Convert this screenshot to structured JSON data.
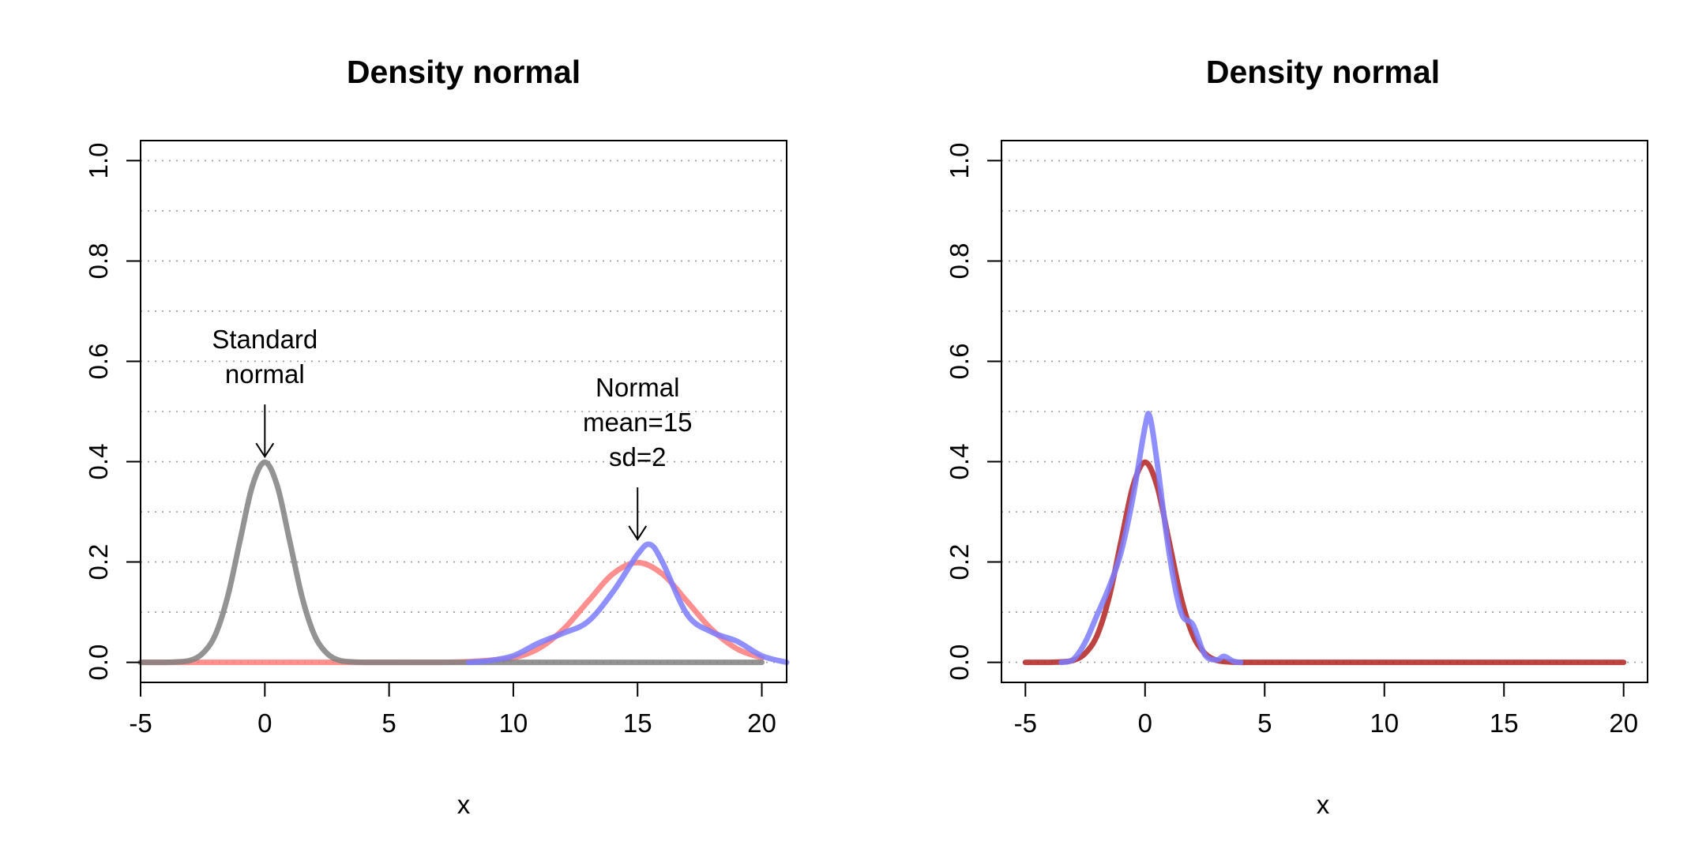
{
  "chart_data": [
    {
      "type": "line",
      "title": "Density normal",
      "xlabel": "x",
      "ylabel": "",
      "xlim": [
        -5,
        21
      ],
      "ylim": [
        -0.04,
        1.04
      ],
      "x_ticks": [
        -5,
        0,
        5,
        10,
        15,
        20
      ],
      "x_tick_labels": [
        "-5",
        "0",
        "5",
        "10",
        "15",
        "20"
      ],
      "y_ticks": [
        0,
        0.2,
        0.4,
        0.6,
        0.8,
        1.0
      ],
      "y_tick_labels": [
        "0.0",
        "0.2",
        "0.4",
        "0.6",
        "0.8",
        "1.0"
      ],
      "grid_y": [
        0,
        0.1,
        0.2,
        0.3,
        0.4,
        0.5,
        0.6,
        0.7,
        0.8,
        0.9,
        1.0
      ],
      "grid": "horizontal dotted",
      "series": [
        {
          "color": "#FF7A7A",
          "x": [
            -5,
            -4,
            -3,
            -2,
            -1,
            0,
            1,
            2,
            3,
            4,
            5,
            6,
            7,
            8,
            9,
            10,
            11,
            12,
            13,
            14,
            15,
            16,
            17,
            18,
            19,
            20
          ],
          "y": [
            0,
            0,
            0,
            0,
            0,
            0,
            0,
            0,
            0,
            0,
            0,
            0,
            0,
            0.001,
            0.004,
            0.009,
            0.027,
            0.065,
            0.121,
            0.176,
            0.199,
            0.176,
            0.121,
            0.065,
            0.027,
            0.009
          ]
        },
        {
          "color": "#808080",
          "x": [
            -5,
            -4.5,
            -4,
            -3.5,
            -3,
            -2.5,
            -2,
            -1.5,
            -1,
            -0.5,
            0,
            0.5,
            1,
            1.5,
            2,
            2.5,
            3,
            3.5,
            4,
            5,
            10,
            15,
            20
          ],
          "y": [
            0,
            0,
            0,
            0.001,
            0.004,
            0.018,
            0.054,
            0.13,
            0.242,
            0.352,
            0.399,
            0.352,
            0.242,
            0.13,
            0.054,
            0.018,
            0.004,
            0.001,
            0,
            0,
            0,
            0,
            0
          ]
        },
        {
          "color": "#7B7BFF",
          "x": [
            8.2,
            9,
            10,
            11,
            12,
            13,
            14,
            15,
            15.5,
            16,
            17,
            18,
            19,
            20,
            21
          ],
          "y": [
            0,
            0.003,
            0.013,
            0.038,
            0.058,
            0.081,
            0.14,
            0.215,
            0.235,
            0.2,
            0.095,
            0.06,
            0.042,
            0.013,
            0
          ]
        }
      ],
      "annotations": [
        {
          "lines": [
            "Standard",
            "normal"
          ],
          "arrow_to": [
            0,
            0.41
          ]
        },
        {
          "lines": [
            "Normal",
            "mean=15",
            "sd=2"
          ],
          "arrow_to": [
            15,
            0.245
          ]
        }
      ]
    },
    {
      "type": "line",
      "title": "Density normal",
      "xlabel": "x",
      "ylabel": "",
      "xlim": [
        -6,
        21
      ],
      "ylim": [
        -0.04,
        1.04
      ],
      "x_ticks": [
        -5,
        0,
        5,
        10,
        15,
        20
      ],
      "x_tick_labels": [
        "-5",
        "0",
        "5",
        "10",
        "15",
        "20"
      ],
      "y_ticks": [
        0,
        0.2,
        0.4,
        0.6,
        0.8,
        1.0
      ],
      "y_tick_labels": [
        "0.0",
        "0.2",
        "0.4",
        "0.6",
        "0.8",
        "1.0"
      ],
      "grid_y": [
        0,
        0.1,
        0.2,
        0.3,
        0.4,
        0.5,
        0.6,
        0.7,
        0.8,
        0.9,
        1.0
      ],
      "grid": "horizontal dotted",
      "series": [
        {
          "color": "#B22222",
          "x": [
            -5,
            -4,
            -3.5,
            -3,
            -2.5,
            -2,
            -1.5,
            -1,
            -0.5,
            0,
            0.5,
            1,
            1.5,
            2,
            2.5,
            3,
            3.5,
            4,
            5,
            10,
            15,
            20
          ],
          "y": [
            0,
            0,
            0.001,
            0.004,
            0.018,
            0.054,
            0.13,
            0.242,
            0.352,
            0.399,
            0.352,
            0.242,
            0.13,
            0.054,
            0.018,
            0.004,
            0.001,
            0,
            0,
            0,
            0,
            0
          ]
        },
        {
          "color": "#7B7BFF",
          "x": [
            -3.5,
            -3,
            -2.5,
            -2,
            -1.5,
            -1,
            -0.5,
            0,
            0.2,
            0.5,
            1,
            1.5,
            2,
            2.5,
            3,
            3.3,
            3.7,
            4
          ],
          "y": [
            0,
            0.006,
            0.04,
            0.095,
            0.15,
            0.22,
            0.33,
            0.47,
            0.49,
            0.4,
            0.22,
            0.1,
            0.075,
            0.015,
            0.005,
            0.012,
            0.002,
            0
          ]
        }
      ]
    }
  ]
}
